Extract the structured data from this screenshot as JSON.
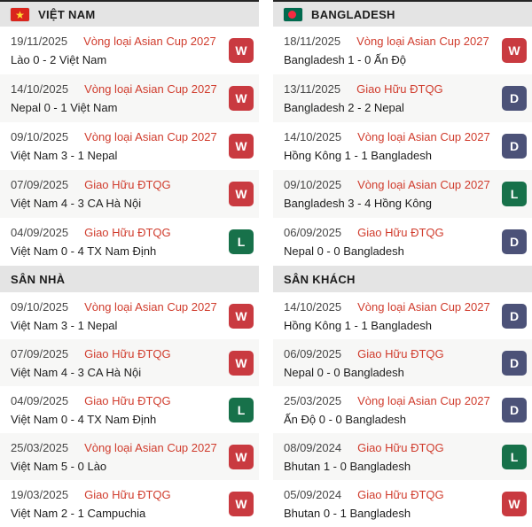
{
  "colors": {
    "W": "#c93a40",
    "D": "#4c5278",
    "L": "#17714a",
    "competition_text": "#d03c2d",
    "header_bg": "#e4e4e4",
    "row_alt_bg": "#f7f7f6"
  },
  "columns": [
    {
      "team": "VIỆT NAM",
      "flag": "vietnam",
      "sections": [
        {
          "title": "",
          "matches": [
            {
              "date": "19/11/2025",
              "competition": "Vòng loại Asian Cup 2027",
              "result": "Lào 0 - 2 Việt Nam",
              "outcome": "W"
            },
            {
              "date": "14/10/2025",
              "competition": "Vòng loại Asian Cup 2027",
              "result": "Nepal 0 - 1 Việt Nam",
              "outcome": "W"
            },
            {
              "date": "09/10/2025",
              "competition": "Vòng loại Asian Cup 2027",
              "result": "Việt Nam 3 - 1 Nepal",
              "outcome": "W"
            },
            {
              "date": "07/09/2025",
              "competition": "Giao Hữu ĐTQG",
              "result": "Việt Nam 4 - 3 CA Hà Nội",
              "outcome": "W"
            },
            {
              "date": "04/09/2025",
              "competition": "Giao Hữu ĐTQG",
              "result": "Việt Nam 0 - 4 TX Nam Định",
              "outcome": "L"
            }
          ]
        },
        {
          "title": "SÂN NHÀ",
          "matches": [
            {
              "date": "09/10/2025",
              "competition": "Vòng loại Asian Cup 2027",
              "result": "Việt Nam 3 - 1 Nepal",
              "outcome": "W"
            },
            {
              "date": "07/09/2025",
              "competition": "Giao Hữu ĐTQG",
              "result": "Việt Nam 4 - 3 CA Hà Nội",
              "outcome": "W"
            },
            {
              "date": "04/09/2025",
              "competition": "Giao Hữu ĐTQG",
              "result": "Việt Nam 0 - 4 TX Nam Định",
              "outcome": "L"
            },
            {
              "date": "25/03/2025",
              "competition": "Vòng loại Asian Cup 2027",
              "result": "Việt Nam 5 - 0 Lào",
              "outcome": "W"
            },
            {
              "date": "19/03/2025",
              "competition": "Giao Hữu ĐTQG",
              "result": "Việt Nam 2 - 1 Campuchia",
              "outcome": "W"
            }
          ]
        }
      ]
    },
    {
      "team": "BANGLADESH",
      "flag": "bangladesh",
      "sections": [
        {
          "title": "",
          "matches": [
            {
              "date": "18/11/2025",
              "competition": "Vòng loại Asian Cup 2027",
              "result": "Bangladesh 1 - 0 Ấn Độ",
              "outcome": "W"
            },
            {
              "date": "13/11/2025",
              "competition": "Giao Hữu ĐTQG",
              "result": "Bangladesh 2 - 2 Nepal",
              "outcome": "D"
            },
            {
              "date": "14/10/2025",
              "competition": "Vòng loại Asian Cup 2027",
              "result": "Hồng Kông 1 - 1 Bangladesh",
              "outcome": "D"
            },
            {
              "date": "09/10/2025",
              "competition": "Vòng loại Asian Cup 2027",
              "result": "Bangladesh 3 - 4 Hồng Kông",
              "outcome": "L"
            },
            {
              "date": "06/09/2025",
              "competition": "Giao Hữu ĐTQG",
              "result": "Nepal 0 - 0 Bangladesh",
              "outcome": "D"
            }
          ]
        },
        {
          "title": "SÂN KHÁCH",
          "matches": [
            {
              "date": "14/10/2025",
              "competition": "Vòng loại Asian Cup 2027",
              "result": "Hồng Kông 1 - 1 Bangladesh",
              "outcome": "D"
            },
            {
              "date": "06/09/2025",
              "competition": "Giao Hữu ĐTQG",
              "result": "Nepal 0 - 0 Bangladesh",
              "outcome": "D"
            },
            {
              "date": "25/03/2025",
              "competition": "Vòng loại Asian Cup 2027",
              "result": "Ấn Độ 0 - 0 Bangladesh",
              "outcome": "D"
            },
            {
              "date": "08/09/2024",
              "competition": "Giao Hữu ĐTQG",
              "result": "Bhutan 1 - 0 Bangladesh",
              "outcome": "L"
            },
            {
              "date": "05/09/2024",
              "competition": "Giao Hữu ĐTQG",
              "result": "Bhutan 0 - 1 Bangladesh",
              "outcome": "W"
            }
          ]
        }
      ]
    }
  ]
}
